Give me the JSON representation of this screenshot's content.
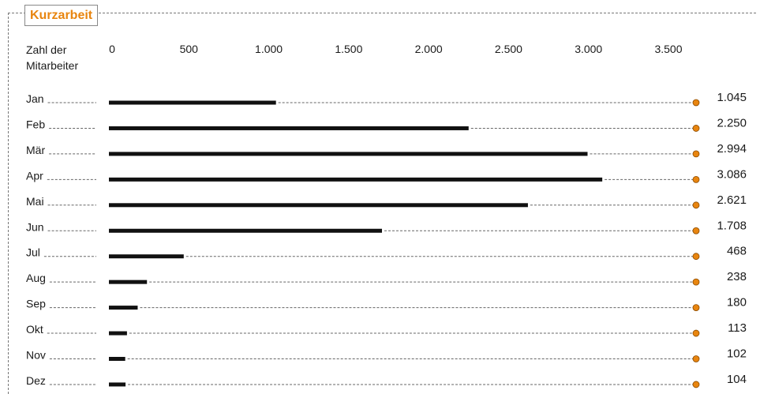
{
  "title": "Kurzarbeit",
  "y_axis_title": "Zahl der\nMitarbeiter",
  "colors": {
    "accent": "#e8850f",
    "bar": "#111111",
    "dash": "#666666"
  },
  "chart_data": {
    "type": "bar",
    "orientation": "horizontal",
    "title": "Kurzarbeit",
    "axis_title": "Zahl der Mitarbeiter",
    "categories": [
      "Jan",
      "Feb",
      "Mär",
      "Apr",
      "Mai",
      "Jun",
      "Jul",
      "Aug",
      "Sep",
      "Okt",
      "Nov",
      "Dez"
    ],
    "values": [
      1045,
      2250,
      2994,
      3086,
      2621,
      1708,
      468,
      238,
      180,
      113,
      102,
      104
    ],
    "value_labels": [
      "1.045",
      "2.250",
      "2.994",
      "3.086",
      "2.621",
      "1.708",
      "468",
      "238",
      "180",
      "113",
      "102",
      "104"
    ],
    "ticks": [
      0,
      500,
      1000,
      1500,
      2000,
      2500,
      3000,
      3500
    ],
    "tick_labels": [
      "0",
      "500",
      "1.000",
      "1.500",
      "2.000",
      "2.500",
      "3.000",
      "3.500"
    ],
    "xlim": [
      0,
      3500
    ],
    "grid": false
  }
}
